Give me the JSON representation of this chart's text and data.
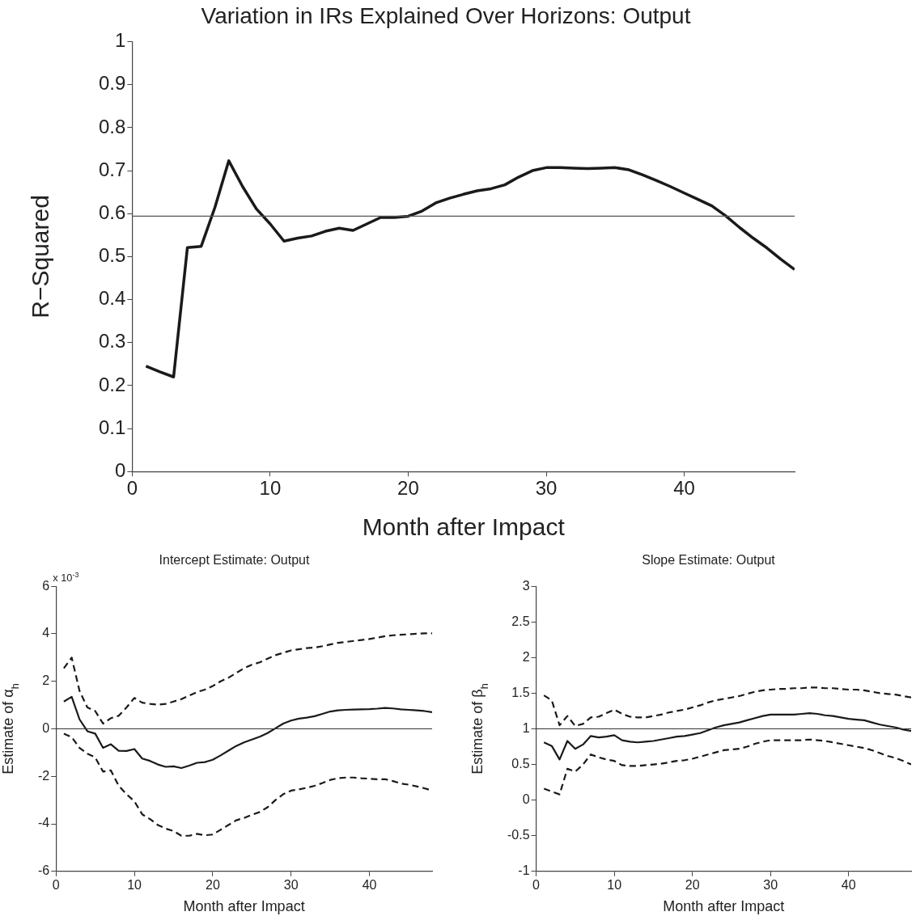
{
  "chart_data": [
    {
      "type": "line",
      "title": "Variation in IRs Explained Over Horizons: Output",
      "xlabel": "Month after Impact",
      "ylabel": "R−Squared",
      "x": [
        1,
        2,
        3,
        4,
        5,
        6,
        7,
        8,
        9,
        10,
        11,
        12,
        13,
        14,
        15,
        16,
        17,
        18,
        19,
        20,
        21,
        22,
        23,
        24,
        25,
        26,
        27,
        28,
        29,
        30,
        31,
        32,
        33,
        34,
        35,
        36,
        37,
        38,
        39,
        40,
        41,
        42,
        43,
        44,
        45,
        46,
        47,
        48
      ],
      "series": [
        {
          "color": "#1a1a1a",
          "line_style": "solid",
          "values": [
            0.245,
            0.232,
            0.22,
            0.521,
            0.524,
            0.615,
            0.723,
            0.663,
            0.611,
            0.576,
            0.536,
            0.543,
            0.548,
            0.559,
            0.566,
            0.561,
            0.576,
            0.591,
            0.591,
            0.594,
            0.606,
            0.625,
            0.636,
            0.645,
            0.653,
            0.658,
            0.667,
            0.685,
            0.7,
            0.707,
            0.707,
            0.706,
            0.705,
            0.706,
            0.707,
            0.702,
            0.69,
            0.677,
            0.663,
            0.648,
            0.633,
            0.618,
            0.595,
            0.568,
            0.543,
            0.52,
            0.494,
            0.47
          ]
        }
      ],
      "xlim": [
        0,
        48
      ],
      "xticks": [
        0,
        10,
        20,
        30,
        40
      ],
      "ylim": [
        0,
        1
      ],
      "yticks": [
        0,
        0.1,
        0.2,
        0.3,
        0.4,
        0.5,
        0.6,
        0.7,
        0.8,
        0.9,
        1
      ],
      "ref_lines": [
        {
          "axis": "y",
          "value": 0.594,
          "color": "#555555"
        }
      ],
      "grid": false,
      "legend": false
    },
    {
      "type": "line",
      "title": "Intercept Estimate: Output",
      "xlabel": "Month after Impact",
      "ylabel": "Estimate of α$_{h}$",
      "annotations": [
        "x 10$^{-3}$"
      ],
      "x": [
        1,
        2,
        3,
        4,
        5,
        6,
        7,
        8,
        9,
        10,
        11,
        12,
        13,
        14,
        15,
        16,
        17,
        18,
        19,
        20,
        21,
        22,
        23,
        24,
        25,
        26,
        27,
        28,
        29,
        30,
        31,
        32,
        33,
        34,
        35,
        36,
        37,
        38,
        39,
        40,
        41,
        42,
        43,
        44,
        45,
        46,
        47,
        48
      ],
      "series": [
        {
          "color": "#1a1a1a",
          "line_style": "dashed",
          "values": [
            2.55,
            3.0,
            1.6,
            0.9,
            0.75,
            0.22,
            0.45,
            0.55,
            0.9,
            1.3,
            1.1,
            1.05,
            1.02,
            1.05,
            1.15,
            1.25,
            1.4,
            1.55,
            1.65,
            1.8,
            2.0,
            2.15,
            2.35,
            2.55,
            2.7,
            2.8,
            2.95,
            3.1,
            3.2,
            3.3,
            3.35,
            3.4,
            3.42,
            3.48,
            3.55,
            3.62,
            3.66,
            3.7,
            3.74,
            3.78,
            3.84,
            3.9,
            3.94,
            3.96,
            3.98,
            4.0,
            4.02,
            4.02
          ]
        },
        {
          "color": "#1a1a1a",
          "line_style": "solid",
          "values": [
            1.15,
            1.35,
            0.4,
            -0.1,
            -0.2,
            -0.8,
            -0.65,
            -0.92,
            -0.93,
            -0.85,
            -1.25,
            -1.35,
            -1.5,
            -1.6,
            -1.58,
            -1.65,
            -1.55,
            -1.43,
            -1.4,
            -1.3,
            -1.12,
            -0.92,
            -0.72,
            -0.57,
            -0.45,
            -0.33,
            -0.18,
            0.02,
            0.22,
            0.35,
            0.43,
            0.47,
            0.53,
            0.63,
            0.73,
            0.78,
            0.8,
            0.81,
            0.82,
            0.83,
            0.85,
            0.88,
            0.86,
            0.82,
            0.8,
            0.78,
            0.75,
            0.7
          ]
        },
        {
          "color": "#1a1a1a",
          "line_style": "dashed",
          "values": [
            -0.2,
            -0.35,
            -0.8,
            -1.05,
            -1.2,
            -1.8,
            -1.75,
            -2.4,
            -2.75,
            -3.05,
            -3.6,
            -3.8,
            -4.05,
            -4.2,
            -4.3,
            -4.5,
            -4.5,
            -4.42,
            -4.48,
            -4.45,
            -4.25,
            -4.05,
            -3.85,
            -3.75,
            -3.62,
            -3.5,
            -3.3,
            -3.0,
            -2.75,
            -2.6,
            -2.55,
            -2.48,
            -2.4,
            -2.28,
            -2.15,
            -2.08,
            -2.05,
            -2.05,
            -2.08,
            -2.1,
            -2.12,
            -2.12,
            -2.2,
            -2.3,
            -2.35,
            -2.42,
            -2.5,
            -2.6
          ]
        }
      ],
      "xlim": [
        0,
        48
      ],
      "xticks": [
        0,
        10,
        20,
        30,
        40
      ],
      "ylim": [
        -6,
        6
      ],
      "yticks": [
        -6,
        -4,
        -2,
        0,
        2,
        4,
        6
      ],
      "ref_lines": [
        {
          "axis": "y",
          "value": 0,
          "color": "#333333"
        }
      ],
      "grid": false,
      "legend": false
    },
    {
      "type": "line",
      "title": "Slope Estimate: Output",
      "xlabel": "Month after Impact",
      "ylabel": "Estimate of β$_{h}$",
      "x": [
        1,
        2,
        3,
        4,
        5,
        6,
        7,
        8,
        9,
        10,
        11,
        12,
        13,
        14,
        15,
        16,
        17,
        18,
        19,
        20,
        21,
        22,
        23,
        24,
        25,
        26,
        27,
        28,
        29,
        30,
        31,
        32,
        33,
        34,
        35,
        36,
        37,
        38,
        39,
        40,
        41,
        42,
        43,
        44,
        45,
        46,
        47,
        48
      ],
      "series": [
        {
          "color": "#1a1a1a",
          "line_style": "dashed",
          "values": [
            1.47,
            1.4,
            1.05,
            1.18,
            1.04,
            1.07,
            1.16,
            1.17,
            1.22,
            1.27,
            1.21,
            1.17,
            1.16,
            1.16,
            1.18,
            1.2,
            1.23,
            1.25,
            1.27,
            1.3,
            1.33,
            1.37,
            1.4,
            1.42,
            1.44,
            1.46,
            1.49,
            1.52,
            1.54,
            1.55,
            1.56,
            1.56,
            1.57,
            1.57,
            1.58,
            1.58,
            1.57,
            1.57,
            1.56,
            1.55,
            1.55,
            1.54,
            1.52,
            1.5,
            1.49,
            1.48,
            1.46,
            1.44
          ]
        },
        {
          "color": "#1a1a1a",
          "line_style": "solid",
          "values": [
            0.81,
            0.76,
            0.57,
            0.83,
            0.72,
            0.78,
            0.9,
            0.88,
            0.89,
            0.91,
            0.84,
            0.82,
            0.81,
            0.82,
            0.83,
            0.85,
            0.87,
            0.89,
            0.9,
            0.92,
            0.94,
            0.98,
            1.02,
            1.05,
            1.07,
            1.09,
            1.12,
            1.15,
            1.18,
            1.2,
            1.2,
            1.2,
            1.2,
            1.21,
            1.22,
            1.21,
            1.19,
            1.18,
            1.16,
            1.14,
            1.13,
            1.12,
            1.09,
            1.06,
            1.04,
            1.02,
            0.99,
            0.97
          ]
        },
        {
          "color": "#1a1a1a",
          "line_style": "dashed",
          "values": [
            0.16,
            0.12,
            0.08,
            0.44,
            0.4,
            0.5,
            0.64,
            0.6,
            0.57,
            0.55,
            0.49,
            0.48,
            0.48,
            0.49,
            0.5,
            0.51,
            0.53,
            0.55,
            0.56,
            0.58,
            0.61,
            0.64,
            0.67,
            0.7,
            0.71,
            0.72,
            0.75,
            0.79,
            0.82,
            0.84,
            0.84,
            0.84,
            0.84,
            0.84,
            0.85,
            0.84,
            0.83,
            0.81,
            0.79,
            0.77,
            0.75,
            0.73,
            0.7,
            0.66,
            0.62,
            0.59,
            0.55,
            0.5
          ]
        }
      ],
      "xlim": [
        0,
        48
      ],
      "xticks": [
        0,
        10,
        20,
        30,
        40
      ],
      "ylim": [
        -1,
        3
      ],
      "yticks": [
        -1,
        -0.5,
        0,
        0.5,
        1,
        1.5,
        2,
        2.5,
        3
      ],
      "ref_lines": [
        {
          "axis": "y",
          "value": 1,
          "color": "#333333"
        }
      ],
      "grid": false,
      "legend": false
    }
  ]
}
